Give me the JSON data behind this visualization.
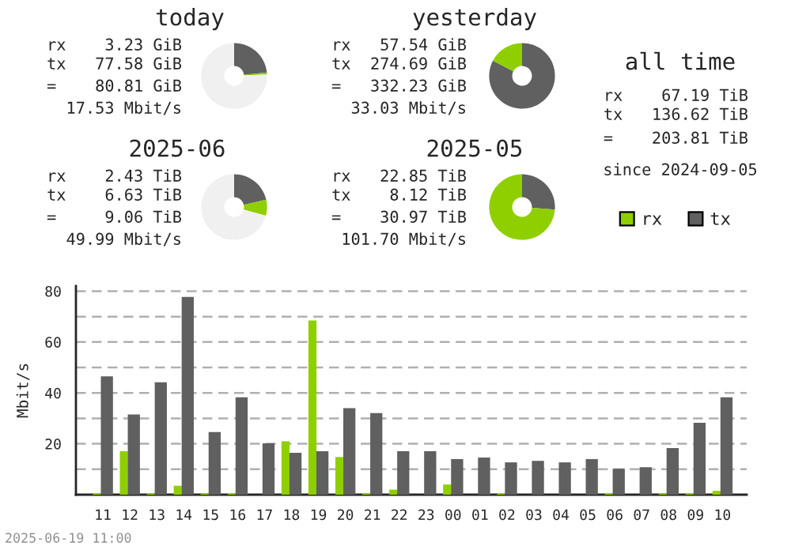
{
  "chart_data": [
    {
      "type": "donut",
      "title": "today",
      "categories": [
        null,
        null,
        null
      ],
      "values": [
        23.35,
        0.97,
        75.68
      ],
      "colors": [
        "#606060",
        "#8fcf00",
        "#f0f0f0"
      ],
      "annotations": [
        "rx    3.23 GiB",
        "tx   77.58 GiB",
        "=    80.81 GiB",
        "17.53 Mbit/s"
      ]
    },
    {
      "type": "donut",
      "title": "yesterday",
      "categories": [
        null,
        null
      ],
      "values": [
        82.68,
        17.32
      ],
      "colors": [
        "#606060",
        "#8fcf00"
      ],
      "annotations": [
        "rx   57.54 GiB",
        "tx  274.69 GiB",
        "=   332.23 GiB",
        "33.03 Mbit/s"
      ]
    },
    {
      "type": "other",
      "title": "all time",
      "annotations": [
        "rx    67.19 TiB",
        "tx   136.62 TiB",
        "=    203.81 TiB",
        "since 2024-09-05"
      ]
    },
    {
      "type": "donut",
      "title": "2025-06",
      "categories": [
        null,
        null,
        null
      ],
      "values": [
        21.41,
        7.85,
        70.74
      ],
      "colors": [
        "#606060",
        "#8fcf00",
        "#f0f0f0"
      ],
      "annotations": [
        "rx    2.43 TiB",
        "tx    6.63 TiB",
        "=     9.06 TiB",
        "49.99 Mbit/s"
      ]
    },
    {
      "type": "donut",
      "title": "2025-05",
      "categories": [
        null,
        null
      ],
      "values": [
        26.22,
        73.78
      ],
      "colors": [
        "#606060",
        "#8fcf00"
      ],
      "annotations": [
        "rx   22.85 TiB",
        "tx    8.12 TiB",
        "=    30.97 TiB",
        "101.70 Mbit/s"
      ]
    },
    {
      "type": "bar",
      "ylabel": "Mbit/s",
      "categories": [
        "11",
        "12",
        "13",
        "14",
        "15",
        "16",
        "17",
        "18",
        "19",
        "20",
        "21",
        "22",
        "23",
        "00",
        "01",
        "02",
        "03",
        "04",
        "05",
        "06",
        "07",
        "08",
        "09",
        "10"
      ],
      "series": [
        {
          "name": "rx",
          "color": "#8fcf00",
          "values": [
            0.5,
            17.1,
            0.5,
            3.5,
            0.5,
            0.5,
            0,
            21,
            68.5,
            14.8,
            0.5,
            2,
            0,
            4,
            0,
            0.5,
            0,
            0,
            0,
            0.5,
            0,
            0.5,
            0.5,
            1.5
          ]
        },
        {
          "name": "tx",
          "color": "#606060",
          "values": [
            46.5,
            31.5,
            44.2,
            77.7,
            24.6,
            38.3,
            20.2,
            16.5,
            17.1,
            34,
            32.1,
            17.1,
            17.1,
            14,
            14.6,
            12.7,
            13.3,
            12.7,
            14,
            10.2,
            10.8,
            18.3,
            28.3,
            38.3
          ]
        }
      ],
      "ylim": [
        0,
        82
      ],
      "yticks": [
        {
          "value": 10,
          "label": null
        },
        20,
        {
          "value": 30,
          "label": null
        },
        40,
        {
          "value": 50,
          "label": null
        },
        60,
        {
          "value": 70,
          "label": null
        },
        80
      ],
      "grid": "y",
      "legend": "top right",
      "annotations": [
        "2025-06-19 11:00"
      ]
    }
  ]
}
